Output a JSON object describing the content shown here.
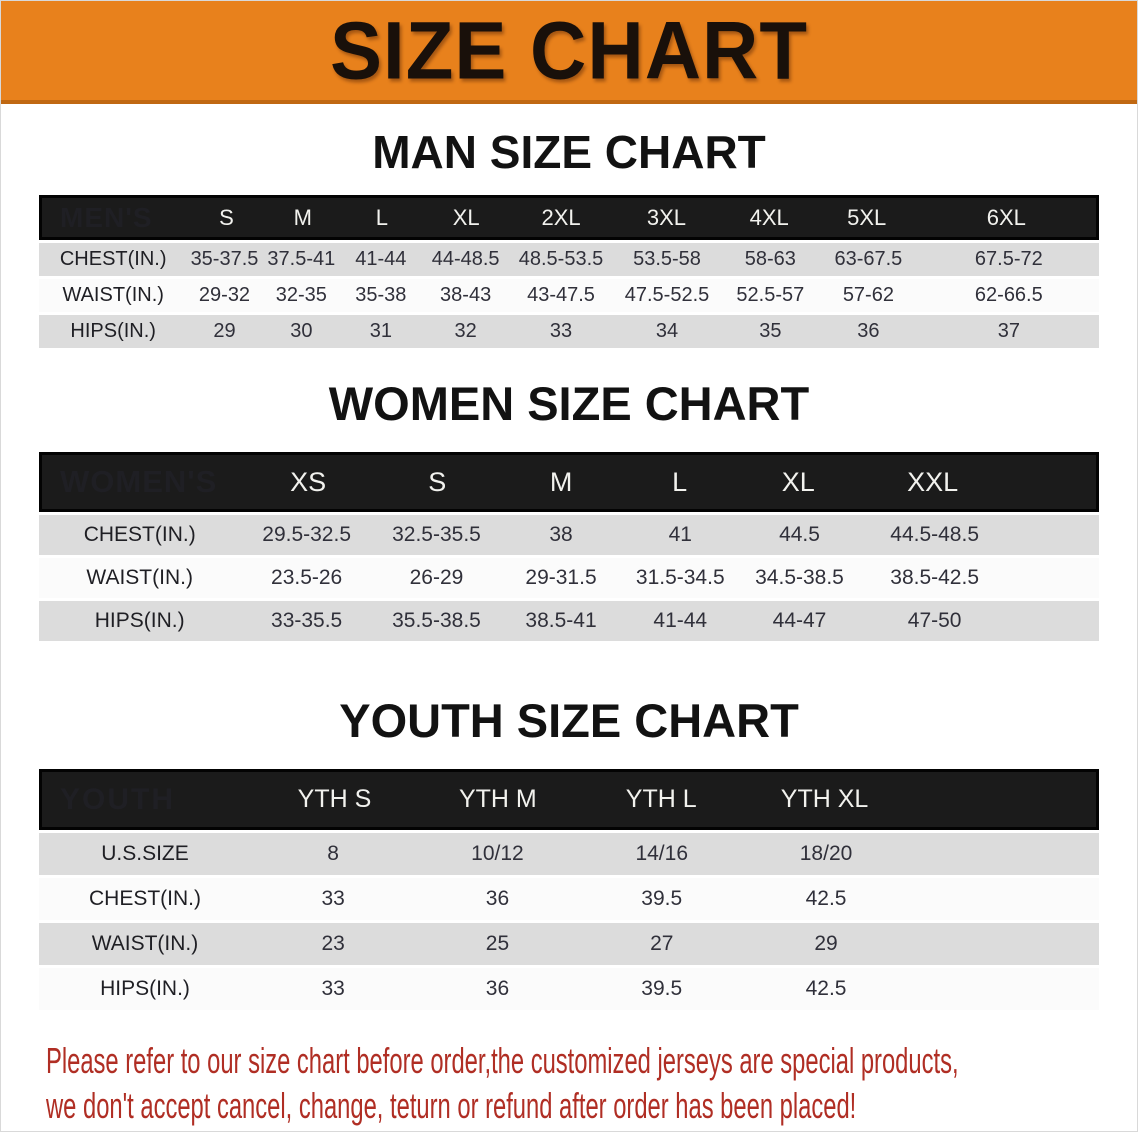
{
  "banner": {
    "title": "SIZE CHART"
  },
  "sections": {
    "men": {
      "heading": "MAN SIZE CHART",
      "header_label": "MEN'S",
      "columns": [
        "S",
        "M",
        "L",
        "XL",
        "2XL",
        "3XL",
        "4XL",
        "5XL",
        "6XL"
      ],
      "rows": [
        {
          "label": "CHEST(IN.)",
          "values": [
            "35-37.5",
            "37.5-41",
            "41-44",
            "44-48.5",
            "48.5-53.5",
            "53.5-58",
            "58-63",
            "63-67.5",
            "67.5-72"
          ]
        },
        {
          "label": "WAIST(IN.)",
          "values": [
            "29-32",
            "32-35",
            "35-38",
            "38-43",
            "43-47.5",
            "47.5-52.5",
            "52.5-57",
            "57-62",
            "62-66.5"
          ]
        },
        {
          "label": "HIPS(IN.)",
          "values": [
            "29",
            "30",
            "31",
            "32",
            "33",
            "34",
            "35",
            "36",
            "37"
          ]
        }
      ]
    },
    "women": {
      "heading": "WOMEN SIZE CHART",
      "header_label": "WOMEN'S",
      "columns": [
        "XS",
        "S",
        "M",
        "L",
        "XL",
        "XXL"
      ],
      "rows": [
        {
          "label": "CHEST(IN.)",
          "values": [
            "29.5-32.5",
            "32.5-35.5",
            "38",
            "41",
            "44.5",
            "44.5-48.5"
          ]
        },
        {
          "label": "WAIST(IN.)",
          "values": [
            "23.5-26",
            "26-29",
            "29-31.5",
            "31.5-34.5",
            "34.5-38.5",
            "38.5-42.5"
          ]
        },
        {
          "label": "HIPS(IN.)",
          "values": [
            "33-35.5",
            "35.5-38.5",
            "38.5-41",
            "41-44",
            "44-47",
            "47-50"
          ]
        }
      ]
    },
    "youth": {
      "heading": "YOUTH SIZE CHART",
      "header_label": "YOUTH",
      "columns": [
        "YTH S",
        "YTH M",
        "YTH L",
        "YTH XL"
      ],
      "rows": [
        {
          "label": "U.S.SIZE",
          "values": [
            "8",
            "10/12",
            "14/16",
            "18/20"
          ]
        },
        {
          "label": "CHEST(IN.)",
          "values": [
            "33",
            "36",
            "39.5",
            "42.5"
          ]
        },
        {
          "label": "WAIST(IN.)",
          "values": [
            "23",
            "25",
            "27",
            "29"
          ]
        },
        {
          "label": "HIPS(IN.)",
          "values": [
            "33",
            "36",
            "39.5",
            "42.5"
          ]
        }
      ]
    }
  },
  "note": {
    "line1": "Please refer to our size chart before order,the customized jerseys are special products,",
    "line2": "we don't accept cancel, change, teturn or refund after order has been placed!"
  },
  "colors": {
    "banner_bg": "#E8811C",
    "banner_edge": "#C06812",
    "banner_text": "#19100A",
    "header_band": "#1B1B1B",
    "header_text": "#F2F2EE",
    "row_gray": "#DCDCDC",
    "row_white": "#FBFBFB",
    "note_red": "#B02E24"
  }
}
